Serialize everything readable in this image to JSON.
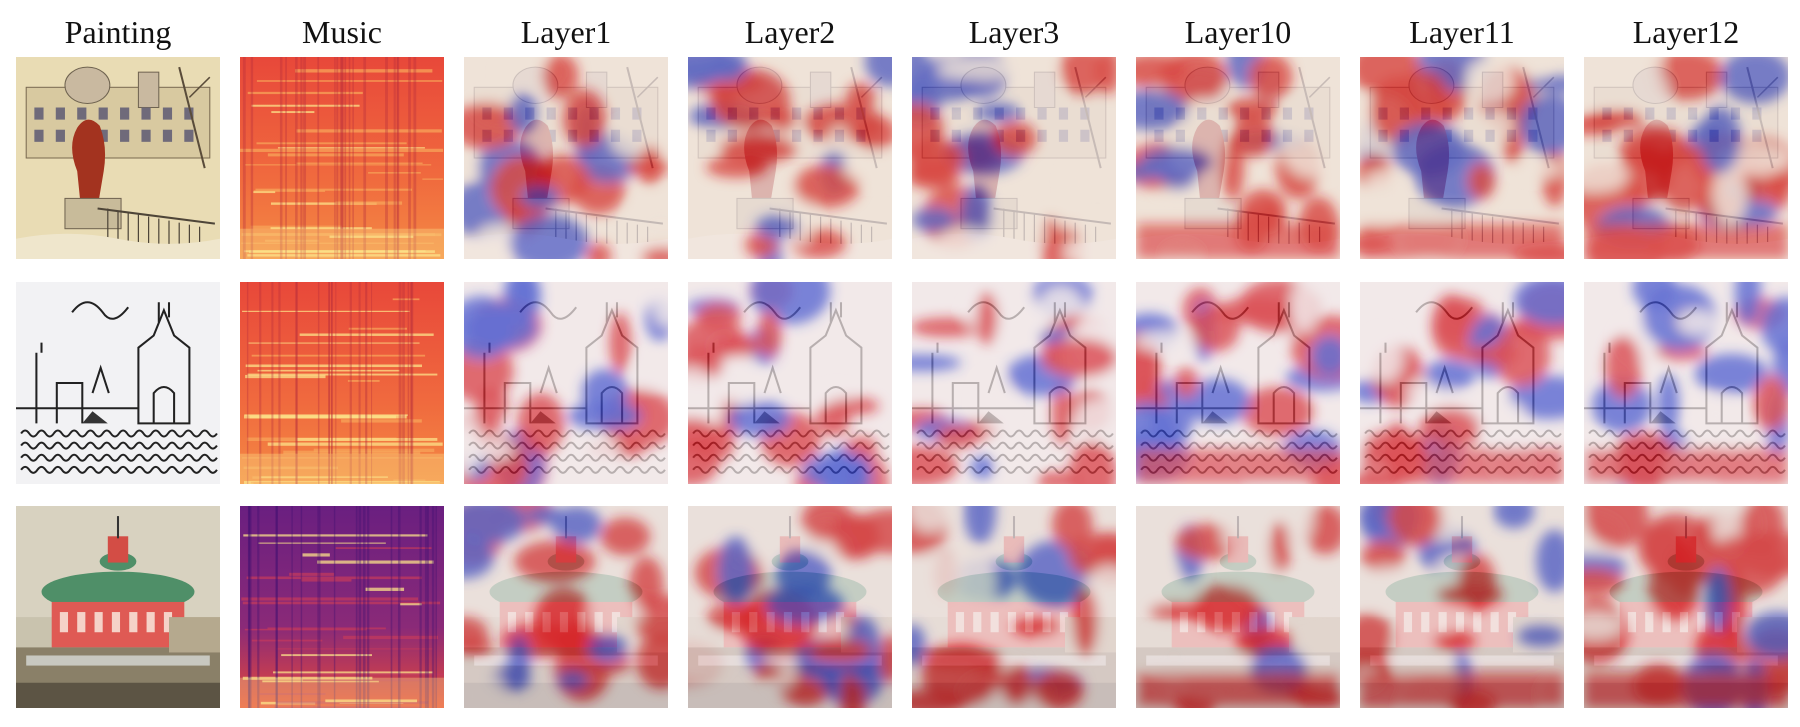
{
  "figure": {
    "columns": [
      {
        "id": "painting",
        "label": "Painting",
        "kind": "painting"
      },
      {
        "id": "music",
        "label": "Music",
        "kind": "spectrogram"
      },
      {
        "id": "layer1",
        "label": "Layer1",
        "kind": "attention"
      },
      {
        "id": "layer2",
        "label": "Layer2",
        "kind": "attention"
      },
      {
        "id": "layer3",
        "label": "Layer3",
        "kind": "attention"
      },
      {
        "id": "layer10",
        "label": "Layer10",
        "kind": "attention"
      },
      {
        "id": "layer11",
        "label": "Layer11",
        "kind": "attention"
      },
      {
        "id": "layer12",
        "label": "Layer12",
        "kind": "attention"
      }
    ],
    "rows": [
      {
        "id": "row-1",
        "painting": "lion-statue-city-square"
      },
      {
        "id": "row-2",
        "painting": "line-drawing-cathedral-waterfront"
      },
      {
        "id": "row-3",
        "painting": "red-building-green-dome"
      }
    ],
    "colors": {
      "attention_high": "#d4141c",
      "attention_low": "#2f3fc8",
      "attention_neutral": "#f2e6e6",
      "spectrogram_high": "#fce38a",
      "spectrogram_mid": "#e8483a",
      "spectrogram_low": "#3b0f70",
      "painting_1_bg": "#e9dcb4",
      "painting_2_bg": "#f2f2f4",
      "painting_3_bg": "#c9c3ae"
    }
  }
}
